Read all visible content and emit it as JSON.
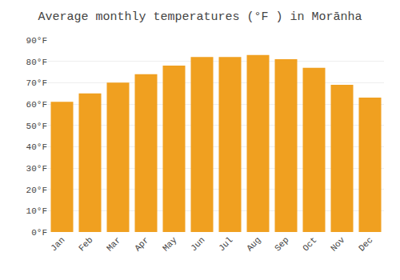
{
  "chart_data": {
    "type": "bar",
    "title": "Average monthly temperatures (°F ) in Morānha",
    "categories": [
      "Jan",
      "Feb",
      "Mar",
      "Apr",
      "May",
      "Jun",
      "Jul",
      "Aug",
      "Sep",
      "Oct",
      "Nov",
      "Dec"
    ],
    "values": [
      61,
      65,
      70,
      74,
      78,
      82,
      82,
      83,
      81,
      77,
      69,
      63
    ],
    "color": "#F0A020",
    "ylim": [
      0,
      90
    ],
    "yticks": [
      {
        "value": 0,
        "label": "0°F"
      },
      {
        "value": 10,
        "label": "10°F"
      },
      {
        "value": 20,
        "label": "20°F"
      },
      {
        "value": 30,
        "label": "30°F"
      },
      {
        "value": 40,
        "label": "40°F"
      },
      {
        "value": 50,
        "label": "50°F"
      },
      {
        "value": 60,
        "label": "60°F"
      },
      {
        "value": 70,
        "label": "70°F"
      },
      {
        "value": 80,
        "label": "80°F"
      },
      {
        "value": 90,
        "label": "90°F"
      }
    ],
    "grid": true
  }
}
